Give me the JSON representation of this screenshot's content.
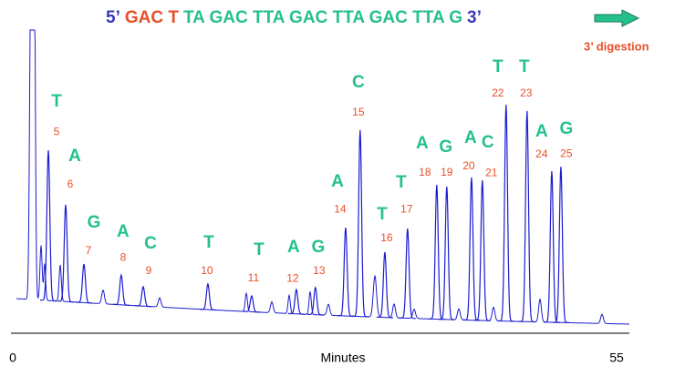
{
  "chart_data": {
    "type": "chromatogram",
    "sequence": [
      {
        "text": "5’",
        "color": "#3a3ab8"
      },
      {
        "text": "GAC T",
        "color": "#e8502a"
      },
      {
        "text": "TA GAC TTA GAC TTA GAC TTA G",
        "color": "#25c08e"
      },
      {
        "text": "3’",
        "color": "#3a3ab8"
      }
    ],
    "annotation": "3’ digestion",
    "xlabel": "Minutes",
    "xlim": [
      0,
      55
    ],
    "xticks": [
      0,
      55
    ],
    "line_color": "#1c1cd0",
    "base_color": "#25c08e",
    "number_color": "#e8502a",
    "peaks": [
      {
        "base": "T",
        "number": "5",
        "time": 3.24,
        "level": 59.6
      },
      {
        "base": "A",
        "number": "6",
        "time": 4.82,
        "level": 41.3
      },
      {
        "base": "G",
        "number": "7",
        "time": 6.48,
        "level": 21.4
      },
      {
        "base": "A",
        "number": "8",
        "time": 9.88,
        "level": 17.7
      },
      {
        "base": "C",
        "number": "9",
        "time": 11.88,
        "level": 13.8
      },
      {
        "base": "T",
        "number": "10",
        "time": 17.77,
        "level": 14.7
      },
      {
        "base": "T",
        "number": "11",
        "time": 21.76,
        "level": 10.7
      },
      {
        "base": "A",
        "number": "12",
        "time": 25.83,
        "level": 12.8
      },
      {
        "base": "G",
        "number": "13",
        "time": 27.57,
        "level": 13.5
      },
      {
        "base": "A",
        "number": "14",
        "time": 30.32,
        "level": 33.6
      },
      {
        "base": "C",
        "number": "15",
        "time": 31.64,
        "level": 66.4
      },
      {
        "base": "T",
        "number": "16",
        "time": 33.89,
        "level": 25.4
      },
      {
        "base": "T",
        "number": "17",
        "time": 35.96,
        "level": 33.3
      },
      {
        "base": "A",
        "number": "18",
        "time": 38.62,
        "level": 48.0
      },
      {
        "base": "G",
        "number": "19",
        "time": 39.53,
        "level": 47.4
      },
      {
        "base": "A",
        "number": "20",
        "time": 41.78,
        "level": 50.5
      },
      {
        "base": "C",
        "number": "21",
        "time": 42.77,
        "level": 49.5
      },
      {
        "base": "T",
        "number": "22",
        "time": 44.93,
        "level": 74.9
      },
      {
        "base": "T",
        "number": "23",
        "time": 46.84,
        "level": 72.8
      },
      {
        "base": "A",
        "number": "24",
        "time": 49.09,
        "level": 52.6
      },
      {
        "base": "G",
        "number": "25",
        "time": 49.92,
        "level": 54.1
      }
    ]
  }
}
